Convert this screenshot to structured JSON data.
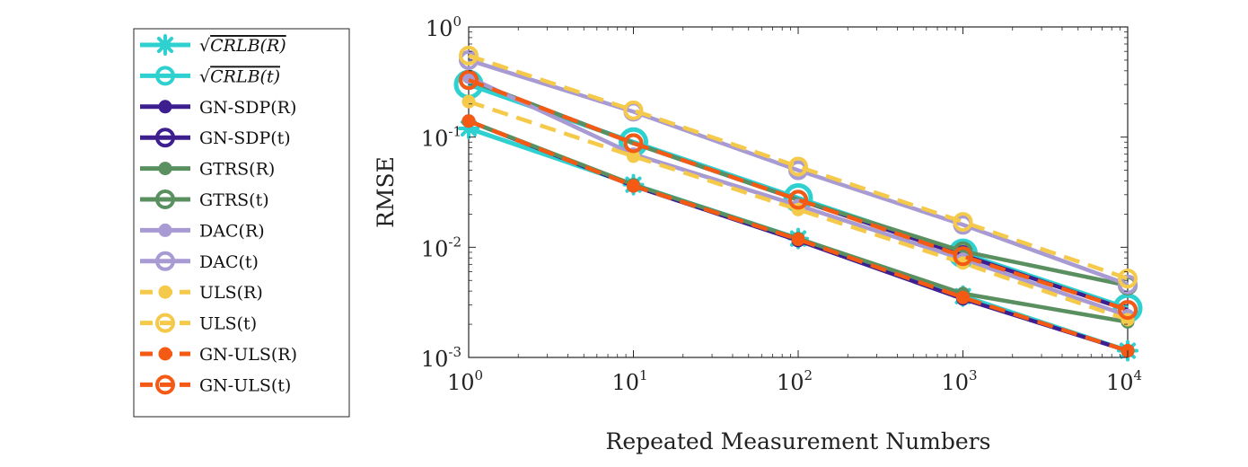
{
  "chart_data": {
    "type": "line",
    "xlabel": "Repeated Measurement Numbers",
    "ylabel": "RMSE",
    "xscale": "log",
    "yscale": "log",
    "xlim": [
      1,
      10000
    ],
    "ylim": [
      0.001,
      1
    ],
    "x": [
      1,
      10,
      100,
      1000,
      10000
    ],
    "x_ticks": [
      {
        "base": "10",
        "exp": "0"
      },
      {
        "base": "10",
        "exp": "1"
      },
      {
        "base": "10",
        "exp": "2"
      },
      {
        "base": "10",
        "exp": "3"
      },
      {
        "base": "10",
        "exp": "4"
      }
    ],
    "y_ticks": [
      {
        "value": 0.001,
        "base": "10",
        "exp": "-3"
      },
      {
        "value": 0.01,
        "base": "10",
        "exp": "-2"
      },
      {
        "value": 0.1,
        "base": "10",
        "exp": "-1"
      },
      {
        "value": 1,
        "base": "10",
        "exp": "0"
      }
    ],
    "grid": false,
    "legend_position": "left, outside plot",
    "series": [
      {
        "name": "√CRLB(R)",
        "sqrt_label": "√",
        "label_body": "CRLB(R)",
        "color": "#2fd0d0",
        "style": "solid",
        "marker": "asterisk",
        "values": [
          0.12,
          0.037,
          0.012,
          0.0036,
          0.00115
        ]
      },
      {
        "name": "√CRLB(t)",
        "sqrt_label": "√",
        "label_body": "CRLB(t)",
        "color": "#2fd0d0",
        "style": "solid",
        "marker": "open-circle-large",
        "values": [
          0.3,
          0.09,
          0.028,
          0.0088,
          0.0028
        ]
      },
      {
        "name": "GN-SDP(R)",
        "color": "#3d1f8f",
        "style": "solid",
        "marker": "filled-circle",
        "values": [
          0.14,
          0.036,
          0.0115,
          0.0034,
          0.00115
        ]
      },
      {
        "name": "GN-SDP(t)",
        "color": "#3d1f8f",
        "style": "solid",
        "marker": "open-circle",
        "values": [
          0.33,
          0.088,
          0.027,
          0.0085,
          0.0027
        ]
      },
      {
        "name": "GTRS(R)",
        "color": "#5a9060",
        "style": "solid",
        "marker": "filled-circle",
        "values": [
          0.14,
          0.037,
          0.012,
          0.0038,
          0.0021
        ]
      },
      {
        "name": "GTRS(t)",
        "color": "#5a9060",
        "style": "solid",
        "marker": "open-circle",
        "values": [
          0.33,
          0.088,
          0.027,
          0.0092,
          0.0045
        ]
      },
      {
        "name": "DAC(R)",
        "color": "#a89ad2",
        "style": "solid",
        "marker": "filled-circle",
        "values": [
          0.35,
          0.07,
          0.024,
          0.0078,
          0.0024
        ]
      },
      {
        "name": "DAC(t)",
        "color": "#a89ad2",
        "style": "solid",
        "marker": "open-circle",
        "values": [
          0.5,
          0.17,
          0.05,
          0.016,
          0.0046
        ]
      },
      {
        "name": "ULS(R)",
        "color": "#f5c94a",
        "style": "dashed",
        "marker": "filled-circle",
        "values": [
          0.21,
          0.067,
          0.022,
          0.0072,
          0.0022
        ]
      },
      {
        "name": "ULS(t)",
        "color": "#f5c94a",
        "style": "dashed",
        "marker": "open-circle",
        "values": [
          0.55,
          0.175,
          0.054,
          0.017,
          0.0052
        ]
      },
      {
        "name": "GN-ULS(R)",
        "color": "#f55a14",
        "style": "dashed",
        "marker": "filled-circle",
        "values": [
          0.14,
          0.036,
          0.0118,
          0.0035,
          0.00115
        ]
      },
      {
        "name": "GN-ULS(t)",
        "color": "#f55a14",
        "style": "dashed",
        "marker": "open-circle",
        "values": [
          0.33,
          0.088,
          0.027,
          0.0083,
          0.0027
        ]
      }
    ]
  }
}
